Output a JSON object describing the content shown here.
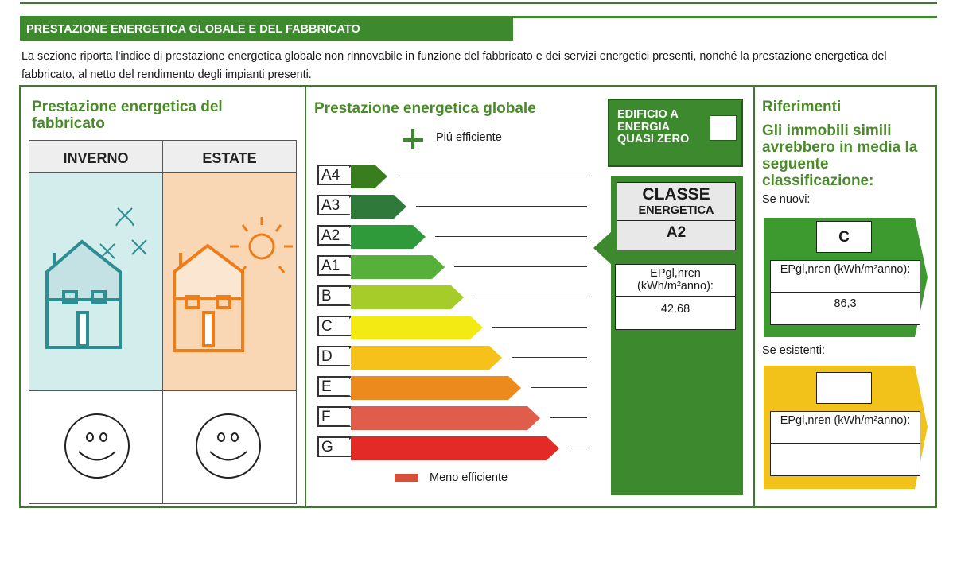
{
  "section": {
    "title": "PRESTAZIONE ENERGETICA GLOBALE E DEL FABBRICATO",
    "intro": "La sezione riporta l'indice di prestazione energetica globale non rinnovabile in funzione del fabbricato e dei servizi energetici presenti, nonché la prestazione energetica del fabbricato, al netto del rendimento degli impianti presenti."
  },
  "building": {
    "title": "Prestazione energetica del fabbricato",
    "winter_label": "INVERNO",
    "summer_label": "ESTATE",
    "icons": [
      "house-snow-icon",
      "house-sun-icon",
      "smiley-winter-icon",
      "smiley-summer-icon"
    ]
  },
  "global": {
    "title": "Prestazione energetica globale",
    "more_efficient": "Piú efficiente",
    "less_efficient": "Meno efficiente",
    "classes": [
      {
        "label": "A4",
        "color": "#3a7d1f"
      },
      {
        "label": "A3",
        "color": "#2f7a3a"
      },
      {
        "label": "A2",
        "color": "#2e9a3a"
      },
      {
        "label": "A1",
        "color": "#56b03a"
      },
      {
        "label": "B",
        "color": "#a6cc2a"
      },
      {
        "label": "C",
        "color": "#f2ea12"
      },
      {
        "label": "D",
        "color": "#f6c11a"
      },
      {
        "label": "E",
        "color": "#ec8a1e"
      },
      {
        "label": "F",
        "color": "#e05d4c"
      },
      {
        "label": "G",
        "color": "#e32a26"
      }
    ],
    "nzeb_label": "EDIFICIO A ENERGIA QUASI ZERO",
    "class_label_1": "CLASSE",
    "class_label_2": "ENERGETICA",
    "class_value": "A2",
    "ep_label": "EPgl,nren (kWh/m²anno):",
    "ep_value": "42.68"
  },
  "references": {
    "title": "Riferimenti",
    "subtitle": "Gli immobili simili avrebbero in media la seguente classificazione:",
    "new_label": "Se nuovi:",
    "new_class": "C",
    "new_ep_label": "EPgl,nren (kWh/m²anno):",
    "new_ep_value": "86,3",
    "existing_label": "Se esistenti:",
    "existing_class": "",
    "existing_ep_label": "EPgl,nren (kWh/m²anno):",
    "existing_ep_value": ""
  }
}
